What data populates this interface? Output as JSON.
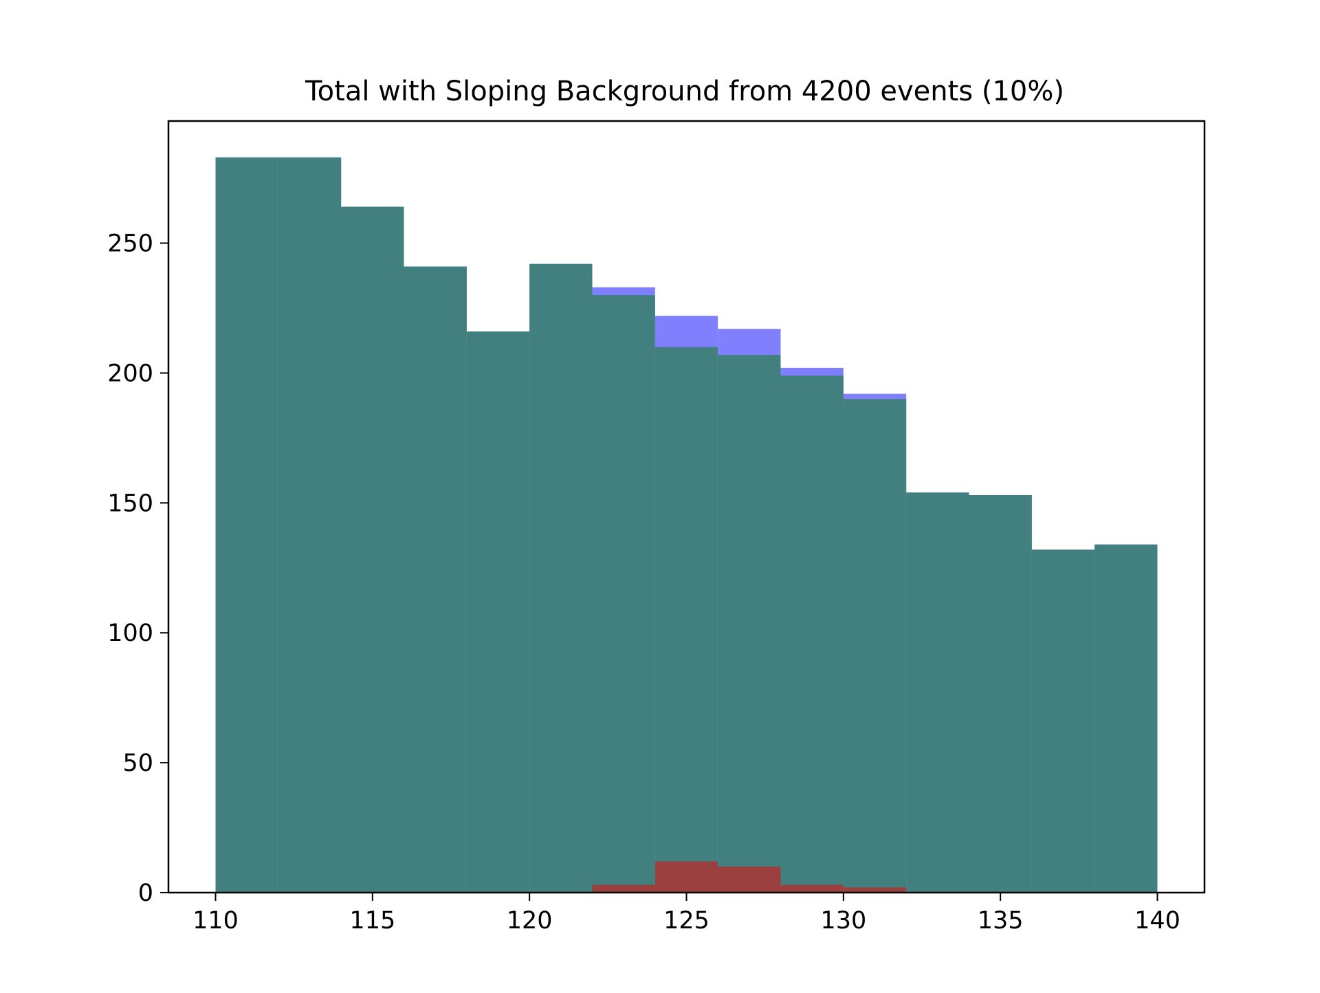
{
  "chart_data": {
    "type": "bar",
    "title": "Total with Sloping Background from 4200 events (10%)",
    "xlabel": "",
    "ylabel": "",
    "xlim": [
      108.5,
      141.5
    ],
    "ylim": [
      0,
      297
    ],
    "x_ticks": [
      110,
      115,
      120,
      125,
      130,
      135,
      140
    ],
    "y_ticks": [
      0,
      50,
      100,
      150,
      200,
      250
    ],
    "bin_edges": [
      110,
      112,
      114,
      116,
      118,
      120,
      122,
      124,
      126,
      128,
      130,
      132,
      134,
      136,
      138,
      140
    ],
    "grid": false,
    "legend": "none",
    "series": [
      {
        "color": "#8080ff",
        "values": [
          283,
          283,
          264,
          241,
          216,
          242,
          233,
          222,
          217,
          202,
          192,
          154,
          153,
          132,
          134
        ]
      },
      {
        "color": "#427f7f",
        "values": [
          283,
          283,
          264,
          241,
          216,
          242,
          230,
          210,
          207,
          199,
          190,
          154,
          153,
          132,
          134
        ]
      },
      {
        "color": "#9b3f3f",
        "values": [
          0,
          0,
          0,
          0,
          0,
          0,
          3,
          12,
          10,
          3,
          2,
          0,
          0,
          0,
          0
        ]
      }
    ]
  }
}
